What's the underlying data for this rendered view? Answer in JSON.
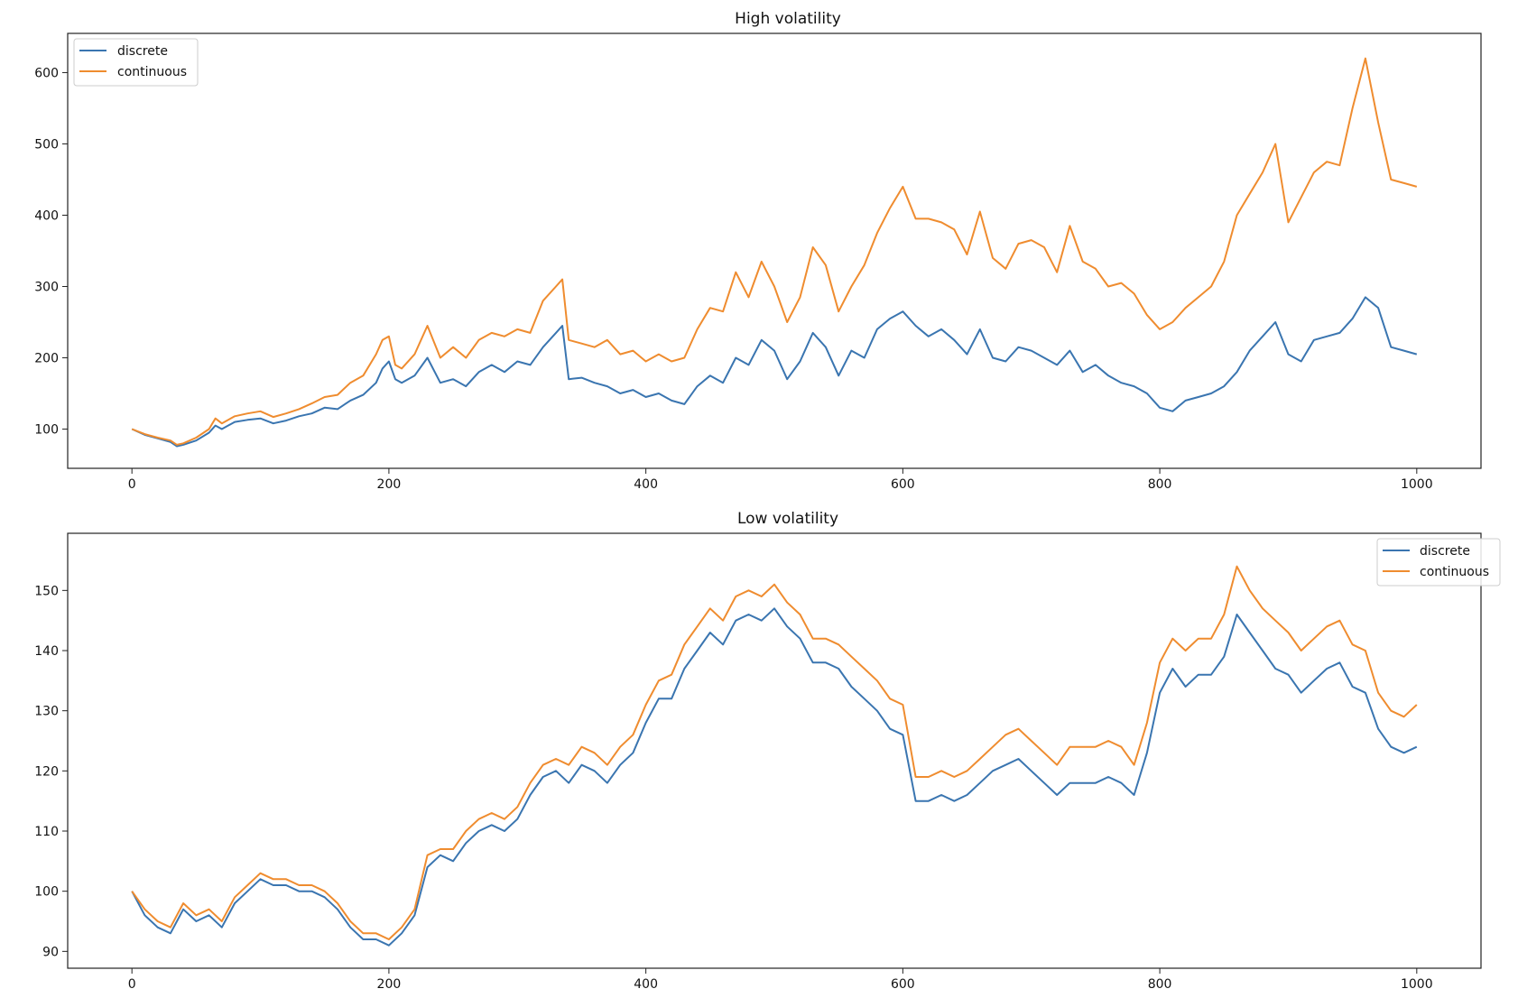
{
  "colors": {
    "discrete": "#3a75b0",
    "continuous": "#ef8c2f",
    "axes": "#222222",
    "legend_border": "#cccccc"
  },
  "chart_data": [
    {
      "type": "line",
      "title": "High volatility",
      "xlabel": "",
      "ylabel": "",
      "xlim": [
        -50,
        1050
      ],
      "ylim": [
        45,
        655
      ],
      "xticks": [
        0,
        200,
        400,
        600,
        800,
        1000
      ],
      "yticks": [
        100,
        200,
        300,
        400,
        500,
        600
      ],
      "legend": "upper-left",
      "x": [
        0,
        10,
        20,
        30,
        35,
        40,
        50,
        60,
        65,
        70,
        80,
        90,
        100,
        110,
        120,
        130,
        140,
        150,
        160,
        170,
        180,
        190,
        195,
        200,
        205,
        210,
        220,
        230,
        240,
        250,
        260,
        270,
        280,
        290,
        300,
        310,
        320,
        330,
        335,
        340,
        350,
        360,
        370,
        380,
        390,
        400,
        410,
        420,
        430,
        440,
        450,
        460,
        470,
        480,
        490,
        500,
        510,
        520,
        530,
        540,
        550,
        560,
        570,
        580,
        590,
        600,
        610,
        620,
        630,
        640,
        650,
        660,
        670,
        680,
        690,
        700,
        710,
        720,
        730,
        740,
        750,
        760,
        770,
        780,
        790,
        800,
        810,
        820,
        830,
        840,
        850,
        860,
        870,
        880,
        890,
        900,
        910,
        920,
        930,
        940,
        950,
        960,
        970,
        980,
        990,
        1000
      ],
      "series": [
        {
          "name": "discrete",
          "values": [
            100,
            92,
            87,
            82,
            76,
            78,
            84,
            95,
            105,
            100,
            110,
            113,
            115,
            108,
            112,
            118,
            122,
            130,
            128,
            140,
            148,
            165,
            185,
            195,
            170,
            165,
            175,
            200,
            165,
            170,
            160,
            180,
            190,
            180,
            195,
            190,
            215,
            235,
            245,
            170,
            172,
            165,
            160,
            150,
            155,
            145,
            150,
            140,
            135,
            160,
            175,
            165,
            200,
            190,
            225,
            210,
            170,
            195,
            235,
            215,
            175,
            210,
            200,
            240,
            255,
            265,
            245,
            230,
            240,
            225,
            205,
            240,
            200,
            195,
            215,
            210,
            200,
            190,
            210,
            180,
            190,
            175,
            165,
            160,
            150,
            130,
            125,
            140,
            145,
            150,
            160,
            180,
            210,
            230,
            250,
            205,
            195,
            225,
            230,
            235,
            255,
            285,
            270,
            215,
            210,
            205
          ]
        },
        {
          "name": "continuous",
          "values": [
            100,
            93,
            88,
            84,
            78,
            80,
            88,
            100,
            115,
            108,
            118,
            122,
            125,
            117,
            122,
            128,
            136,
            145,
            148,
            165,
            175,
            205,
            225,
            230,
            190,
            185,
            205,
            245,
            200,
            215,
            200,
            225,
            235,
            230,
            240,
            235,
            280,
            300,
            310,
            225,
            220,
            215,
            225,
            205,
            210,
            195,
            205,
            195,
            200,
            240,
            270,
            265,
            320,
            285,
            335,
            300,
            250,
            285,
            355,
            330,
            265,
            300,
            330,
            375,
            410,
            440,
            395,
            395,
            390,
            380,
            345,
            405,
            340,
            325,
            360,
            365,
            355,
            320,
            385,
            335,
            325,
            300,
            305,
            290,
            260,
            240,
            250,
            270,
            285,
            300,
            335,
            400,
            430,
            460,
            500,
            390,
            425,
            460,
            475,
            470,
            550,
            620,
            530,
            450,
            445,
            440
          ]
        }
      ]
    },
    {
      "type": "line",
      "title": "Low volatility",
      "xlabel": "",
      "ylabel": "",
      "xlim": [
        -50,
        1050
      ],
      "ylim": [
        87.2,
        159.5
      ],
      "xticks": [
        0,
        200,
        400,
        600,
        800,
        1000
      ],
      "yticks": [
        90,
        100,
        110,
        120,
        130,
        140,
        150
      ],
      "legend": "upper-right",
      "x": [
        0,
        10,
        20,
        30,
        40,
        50,
        60,
        70,
        80,
        90,
        100,
        110,
        120,
        130,
        140,
        150,
        160,
        170,
        180,
        190,
        200,
        210,
        220,
        230,
        240,
        250,
        260,
        270,
        280,
        290,
        300,
        310,
        320,
        330,
        340,
        350,
        360,
        370,
        380,
        390,
        400,
        410,
        420,
        430,
        440,
        450,
        460,
        470,
        480,
        490,
        500,
        510,
        520,
        530,
        540,
        550,
        560,
        570,
        580,
        590,
        600,
        610,
        620,
        630,
        640,
        650,
        660,
        670,
        680,
        690,
        700,
        710,
        720,
        730,
        740,
        750,
        760,
        770,
        780,
        790,
        800,
        810,
        820,
        830,
        840,
        850,
        860,
        870,
        880,
        890,
        900,
        910,
        920,
        930,
        940,
        950,
        960,
        970,
        980,
        990,
        1000
      ],
      "series": [
        {
          "name": "discrete",
          "values": [
            100,
            96,
            94,
            93,
            97,
            95,
            96,
            94,
            98,
            100,
            102,
            101,
            101,
            100,
            100,
            99,
            97,
            94,
            92,
            92,
            91,
            93,
            96,
            104,
            106,
            105,
            108,
            110,
            111,
            110,
            112,
            116,
            119,
            120,
            118,
            121,
            120,
            118,
            121,
            123,
            128,
            132,
            132,
            137,
            140,
            143,
            141,
            145,
            146,
            145,
            147,
            144,
            142,
            138,
            138,
            137,
            134,
            132,
            130,
            127,
            126,
            115,
            115,
            116,
            115,
            116,
            118,
            120,
            121,
            122,
            120,
            118,
            116,
            118,
            118,
            118,
            119,
            118,
            116,
            123,
            133,
            137,
            134,
            136,
            136,
            139,
            146,
            143,
            140,
            137,
            136,
            133,
            135,
            137,
            138,
            134,
            133,
            127,
            124,
            123,
            124
          ]
        },
        {
          "name": "continuous",
          "values": [
            100,
            97,
            95,
            94,
            98,
            96,
            97,
            95,
            99,
            101,
            103,
            102,
            102,
            101,
            101,
            100,
            98,
            95,
            93,
            93,
            92,
            94,
            97,
            106,
            107,
            107,
            110,
            112,
            113,
            112,
            114,
            118,
            121,
            122,
            121,
            124,
            123,
            121,
            124,
            126,
            131,
            135,
            136,
            141,
            144,
            147,
            145,
            149,
            150,
            149,
            151,
            148,
            146,
            142,
            142,
            141,
            139,
            137,
            135,
            132,
            131,
            119,
            119,
            120,
            119,
            120,
            122,
            124,
            126,
            127,
            125,
            123,
            121,
            124,
            124,
            124,
            125,
            124,
            121,
            128,
            138,
            142,
            140,
            142,
            142,
            146,
            154,
            150,
            147,
            145,
            143,
            140,
            142,
            144,
            145,
            141,
            140,
            133,
            130,
            129,
            131
          ]
        }
      ]
    }
  ]
}
